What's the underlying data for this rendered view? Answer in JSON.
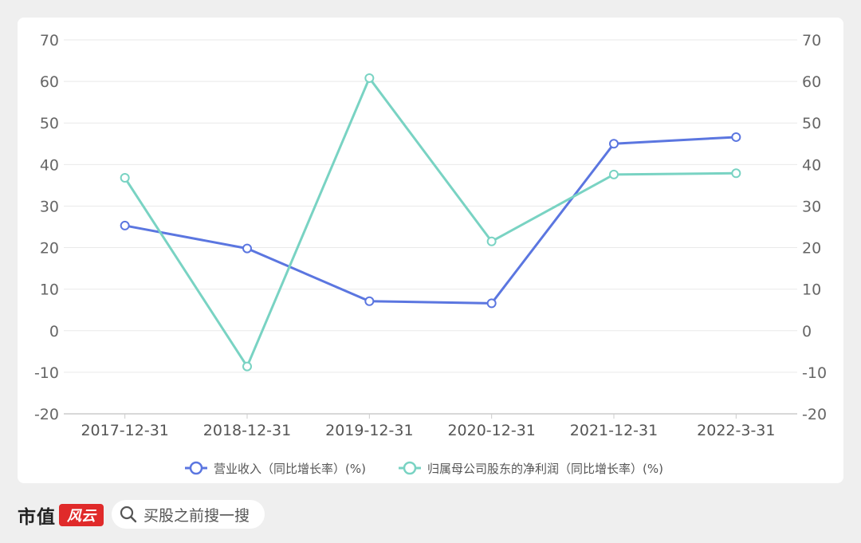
{
  "chart_data": {
    "type": "line",
    "categories": [
      "2017-12-31",
      "2018-12-31",
      "2019-12-31",
      "2020-12-31",
      "2021-12-31",
      "2022-3-31"
    ],
    "series": [
      {
        "name": "营业收入（同比增长率）(%)",
        "values": [
          25.3,
          19.8,
          7.1,
          6.6,
          45.0,
          46.6
        ],
        "color": "#5b76e0"
      },
      {
        "name": "归属母公司股东的净利润（同比增长率）(%)",
        "values": [
          36.8,
          -8.6,
          60.8,
          21.5,
          37.6,
          37.9
        ],
        "color": "#79d3c3"
      }
    ],
    "ylim": [
      -20,
      70
    ],
    "yticks": [
      70,
      60,
      50,
      40,
      30,
      20,
      10,
      0,
      -10,
      -20
    ],
    "grid": true,
    "legend": "bottom",
    "xlabel": "",
    "ylabel": ""
  },
  "footer": {
    "brand": "市值",
    "brand_mark": "风云",
    "search_placeholder": "买股之前搜一搜"
  },
  "colors": {
    "accent": "#e02a2a"
  }
}
